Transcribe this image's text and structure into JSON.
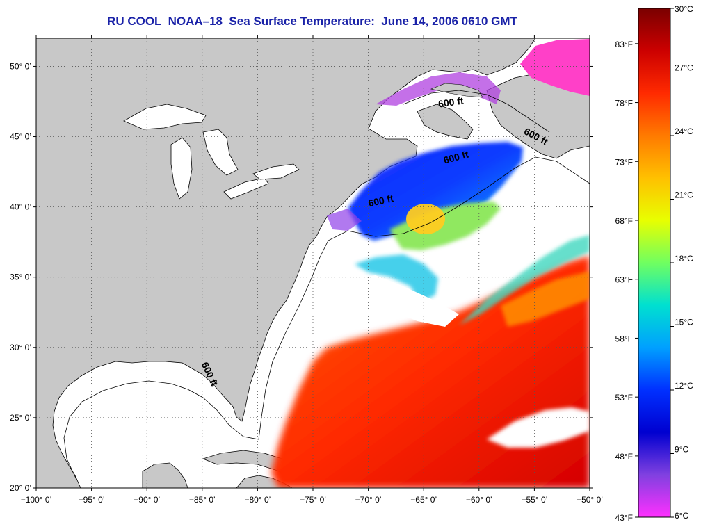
{
  "title": "RU COOL  NOAA–18  Sea Surface Temperature:  June 14, 2006 0610 GMT",
  "map": {
    "lon_range": [
      -100,
      -50
    ],
    "lat_range": [
      20,
      52
    ],
    "lon_ticks": [
      {
        "value": -100,
        "label": "−100° 0’"
      },
      {
        "value": -95,
        "label": "−95° 0’"
      },
      {
        "value": -90,
        "label": "−90° 0’"
      },
      {
        "value": -85,
        "label": "−85° 0’"
      },
      {
        "value": -80,
        "label": "−80° 0’"
      },
      {
        "value": -75,
        "label": "−75° 0’"
      },
      {
        "value": -70,
        "label": "−70° 0’"
      },
      {
        "value": -65,
        "label": "−65° 0’"
      },
      {
        "value": -60,
        "label": "−60° 0’"
      },
      {
        "value": -55,
        "label": "−55° 0’"
      },
      {
        "value": -50,
        "label": "−50° 0’"
      }
    ],
    "lat_ticks": [
      {
        "value": 20,
        "label": "20° 0’"
      },
      {
        "value": 25,
        "label": "25° 0’"
      },
      {
        "value": 30,
        "label": "30° 0’"
      },
      {
        "value": 35,
        "label": "35° 0’"
      },
      {
        "value": 40,
        "label": "40° 0’"
      },
      {
        "value": 45,
        "label": "45° 0’"
      },
      {
        "value": 50,
        "label": "50° 0’"
      }
    ],
    "grid": "dotted",
    "land_color": "#c8c8c8",
    "no_data_color": "#ffffff",
    "isobath_label": "600 ft",
    "isobath_annotations": [
      {
        "lon": -62.5,
        "lat": 47.2,
        "rotation": -8
      },
      {
        "lon": -55.0,
        "lat": 44.8,
        "rotation": 28
      },
      {
        "lon": -62.0,
        "lat": 43.3,
        "rotation": -15
      },
      {
        "lon": -68.8,
        "lat": 40.2,
        "rotation": -12
      },
      {
        "lon": -84.6,
        "lat": 28.0,
        "rotation": 65
      }
    ]
  },
  "colorbar": {
    "celsius_labels": [
      "30°C",
      "27°C",
      "24°C",
      "21°C",
      "18°C",
      "15°C",
      "12°C",
      "9°C",
      "6°C"
    ],
    "fahrenheit_labels": [
      "83°F",
      "78°F",
      "73°F",
      "68°F",
      "63°F",
      "58°F",
      "53°F",
      "48°F",
      "43°F"
    ],
    "fahrenheit_values": [
      83,
      78,
      73,
      68,
      63,
      58,
      53,
      48,
      43
    ],
    "range_c": [
      6,
      30
    ],
    "color_stops": [
      "#7a0000",
      "#cc0000",
      "#ff2a00",
      "#ff7a00",
      "#ffc000",
      "#e8ff00",
      "#70ff60",
      "#00e0d0",
      "#00a0ff",
      "#0030ff",
      "#0000d0",
      "#8040e0",
      "#ff30ff"
    ]
  }
}
